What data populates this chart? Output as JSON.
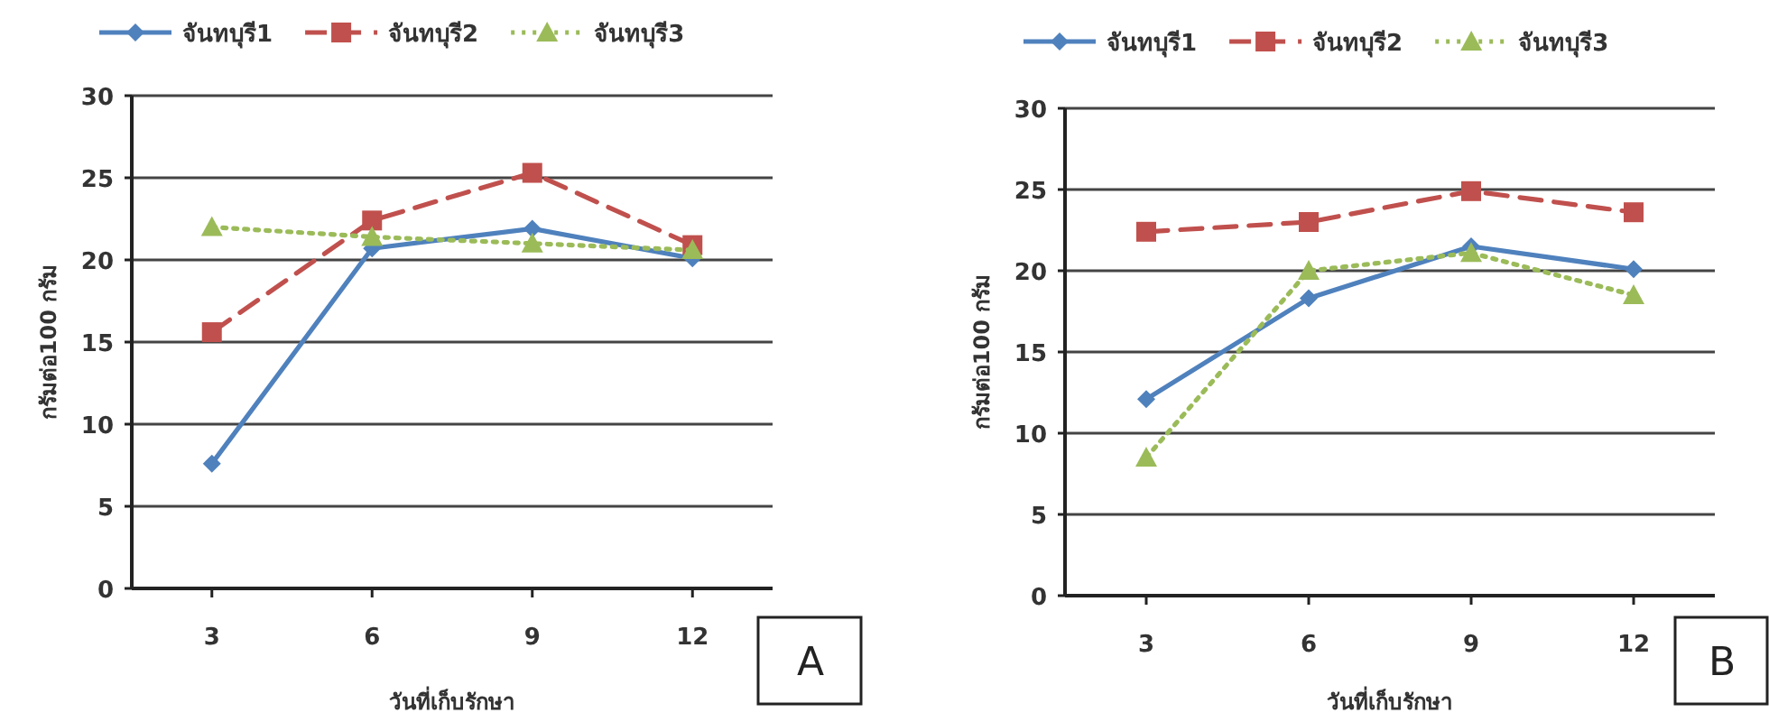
{
  "chart_data": [
    {
      "type": "line",
      "xlabel": "วันที่เก็บรักษา",
      "ylabel": "กรัมต่อ100 กรัม",
      "categories": [
        "3",
        "6",
        "9",
        "12"
      ],
      "ylim": [
        0,
        30
      ],
      "yticks": [
        0,
        5,
        10,
        15,
        20,
        25,
        30
      ],
      "grid": "y",
      "legend": "top",
      "annotations": [
        "A"
      ],
      "series": [
        {
          "name": "จันทบุรี1",
          "color": "#4f81bd",
          "marker": "diamond",
          "line_style": "solid",
          "values": [
            7.6,
            20.7,
            21.9,
            20.1
          ]
        },
        {
          "name": "จันทบุรี2",
          "color": "#c0504d",
          "marker": "square",
          "line_style": "dashed",
          "values": [
            15.6,
            22.4,
            25.3,
            20.9
          ]
        },
        {
          "name": "จันทบุรี3",
          "color": "#9bbb59",
          "marker": "triangle",
          "line_style": "dotted",
          "values": [
            22.0,
            21.4,
            21.0,
            20.6
          ]
        }
      ]
    },
    {
      "type": "line",
      "xlabel": "วันที่เก็บรักษา",
      "ylabel": "กรัมต่อ100 กรัม",
      "categories": [
        "3",
        "6",
        "9",
        "12"
      ],
      "ylim": [
        0,
        30
      ],
      "yticks": [
        0,
        5,
        10,
        15,
        20,
        25,
        30
      ],
      "grid": "y",
      "legend": "top",
      "annotations": [
        "B"
      ],
      "series": [
        {
          "name": "จันทบุรี1",
          "color": "#4f81bd",
          "marker": "diamond",
          "line_style": "solid",
          "values": [
            12.1,
            18.3,
            21.5,
            20.1
          ]
        },
        {
          "name": "จันทบุรี2",
          "color": "#c0504d",
          "marker": "square",
          "line_style": "dashed",
          "values": [
            22.4,
            23.0,
            24.9,
            23.6
          ]
        },
        {
          "name": "จันทบุรี3",
          "color": "#9bbb59",
          "marker": "triangle",
          "line_style": "dotted",
          "values": [
            8.5,
            20.0,
            21.1,
            18.5
          ]
        }
      ]
    }
  ]
}
